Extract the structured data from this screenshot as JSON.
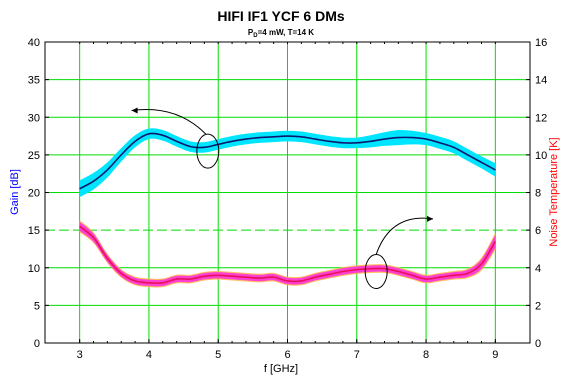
{
  "chart_data": {
    "type": "line",
    "title": "HIFI IF1 YCF 6 DMs",
    "subtitle_main": "P",
    "subtitle_sub": "D",
    "subtitle_rest": "=4 mW, T=14 K",
    "xlabel": "f [GHz]",
    "ylabel_left": "Gain [dB]",
    "ylabel_right": "Noise Temperature [K]",
    "xlim": [
      2.5,
      9.5
    ],
    "ylim_left": [
      0,
      40
    ],
    "ylim_right": [
      0,
      16
    ],
    "x_ticks": [
      "3",
      "4",
      "5",
      "6",
      "7",
      "8",
      "9"
    ],
    "y_ticks_left": [
      "0",
      "5",
      "10",
      "15",
      "20",
      "25",
      "30",
      "35",
      "40"
    ],
    "y_ticks_right": [
      "0",
      "2",
      "4",
      "6",
      "8",
      "10",
      "12",
      "14",
      "16"
    ],
    "grid": true,
    "colors": {
      "gain_line": "#0a1a6e",
      "gain_band": "#00e5ff",
      "noise_line": "#e8105a",
      "noise_band": "#ff3fd2",
      "noise_band_outer": "#ffb347",
      "grid": "#00dd00",
      "left_label": "#0000ff",
      "right_label": "#ff0000"
    },
    "series": [
      {
        "axis": "left",
        "x": [
          3.0,
          3.2,
          3.4,
          3.6,
          3.8,
          4.0,
          4.2,
          4.4,
          4.6,
          4.8,
          5.0,
          5.2,
          5.4,
          5.6,
          5.8,
          6.0,
          6.2,
          6.4,
          6.6,
          6.8,
          7.0,
          7.2,
          7.4,
          7.6,
          7.8,
          8.0,
          8.2,
          8.4,
          8.6,
          8.8,
          9.0
        ],
        "y": [
          20.5,
          21.5,
          23.0,
          25.0,
          26.8,
          27.8,
          27.6,
          26.8,
          26.1,
          26.0,
          26.4,
          26.8,
          27.1,
          27.3,
          27.4,
          27.5,
          27.4,
          27.1,
          26.8,
          26.6,
          26.6,
          26.8,
          27.1,
          27.3,
          27.3,
          27.1,
          26.6,
          26.0,
          25.0,
          24.0,
          23.0
        ],
        "band": [
          1.1,
          1.1,
          1.0,
          0.9,
          0.8,
          0.7,
          0.7,
          0.7,
          0.7,
          0.7,
          0.7,
          0.7,
          0.7,
          0.7,
          0.7,
          0.7,
          0.7,
          0.7,
          0.7,
          0.7,
          0.7,
          0.8,
          0.9,
          1.0,
          0.9,
          0.8,
          0.8,
          0.8,
          0.8,
          0.8,
          0.9
        ]
      },
      {
        "axis": "right",
        "x": [
          3.0,
          3.2,
          3.4,
          3.6,
          3.8,
          4.0,
          4.2,
          4.4,
          4.6,
          4.8,
          5.0,
          5.2,
          5.4,
          5.6,
          5.8,
          6.0,
          6.2,
          6.4,
          6.6,
          6.8,
          7.0,
          7.2,
          7.4,
          7.6,
          7.8,
          8.0,
          8.2,
          8.4,
          8.6,
          8.8,
          9.0
        ],
        "y": [
          6.2,
          5.6,
          4.5,
          3.7,
          3.3,
          3.2,
          3.2,
          3.4,
          3.4,
          3.55,
          3.6,
          3.55,
          3.5,
          3.45,
          3.5,
          3.3,
          3.3,
          3.5,
          3.65,
          3.8,
          3.9,
          3.95,
          3.95,
          3.8,
          3.6,
          3.4,
          3.5,
          3.6,
          3.7,
          4.2,
          5.4
        ],
        "band": [
          0.28,
          0.25,
          0.22,
          0.2,
          0.2,
          0.2,
          0.2,
          0.2,
          0.2,
          0.2,
          0.2,
          0.2,
          0.2,
          0.2,
          0.2,
          0.2,
          0.2,
          0.2,
          0.2,
          0.2,
          0.2,
          0.2,
          0.2,
          0.2,
          0.2,
          0.2,
          0.2,
          0.2,
          0.22,
          0.3,
          0.4
        ]
      }
    ],
    "annotations": [
      {
        "type": "ellipse-arrow",
        "target": "left",
        "cx": 4.85,
        "cy": 25.5,
        "arrow_to_x": 3.75,
        "arrow_to_y": 30.9
      },
      {
        "type": "ellipse-arrow",
        "target": "right",
        "cx": 7.28,
        "cy": 3.8,
        "arrow_to_x": 8.1,
        "arrow_to_y": 6.6
      }
    ]
  }
}
